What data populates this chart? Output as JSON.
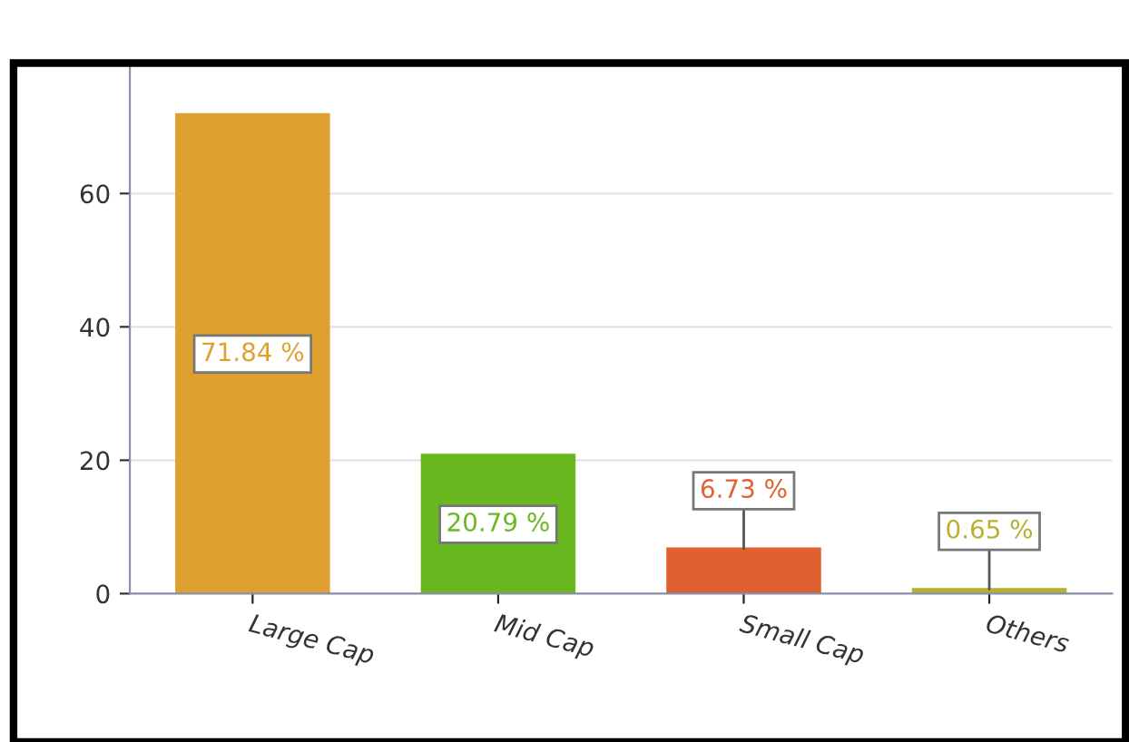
{
  "chart_data": {
    "type": "bar",
    "categories": [
      "Large Cap",
      "Mid Cap",
      "Small Cap",
      "Others"
    ],
    "values": [
      71.84,
      20.79,
      6.73,
      0.65
    ],
    "colors": [
      "#e0a030",
      "#6ab820",
      "#e06030",
      "#b8b030"
    ],
    "value_labels": [
      "71.84 %",
      "20.79 %",
      "6.73 %",
      "0.65 %"
    ],
    "ylim": [
      0,
      79
    ],
    "yticks": [
      0,
      20,
      40,
      60
    ],
    "grid": "y",
    "legend": false
  }
}
